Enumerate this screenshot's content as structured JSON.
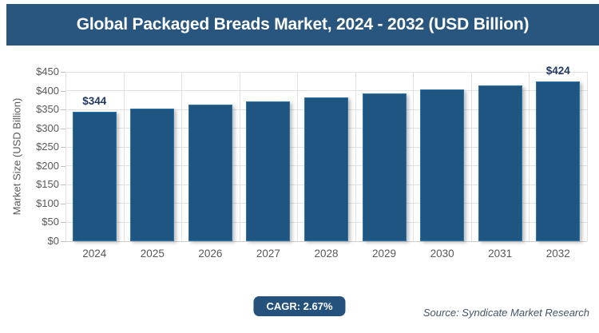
{
  "header": {
    "title": "Global Packaged Breads Market, 2024 - 2032 (USD Billion)"
  },
  "chart_data": {
    "type": "bar",
    "title": "Global Packaged Breads Market, 2024 - 2032 (USD Billion)",
    "categories": [
      "2024",
      "2025",
      "2026",
      "2027",
      "2028",
      "2029",
      "2030",
      "2031",
      "2032"
    ],
    "values": [
      344,
      353,
      363,
      372,
      382,
      392,
      403,
      414,
      424
    ],
    "value_labels": [
      "$344",
      "",
      "",
      "",
      "",
      "",
      "",
      "",
      "$424"
    ],
    "xlabel": "",
    "ylabel": "Market Size (USD Billion)",
    "ylim": [
      0,
      450
    ],
    "yticks": [
      0,
      50,
      100,
      150,
      200,
      250,
      300,
      350,
      400,
      450
    ],
    "ytick_labels": [
      "$0",
      "$50",
      "$100",
      "$150",
      "$200",
      "$250",
      "$300",
      "$350",
      "$400",
      "$450"
    ],
    "grid": true,
    "legend": "none"
  },
  "footer": {
    "cagr_badge": "CAGR: 2.67%",
    "source": "Source: Syndicate Market Research"
  },
  "colors": {
    "header_bg": "#29567E",
    "bar_fill": "#1F5581",
    "bar_border": "#2E74A8",
    "value_label": "#1F3864",
    "axis_text": "#595959",
    "gridline": "#E2E2E2",
    "tick_mark": "#BFBFBF",
    "badge_bg": "#25527C",
    "source_text": "#44546A"
  }
}
